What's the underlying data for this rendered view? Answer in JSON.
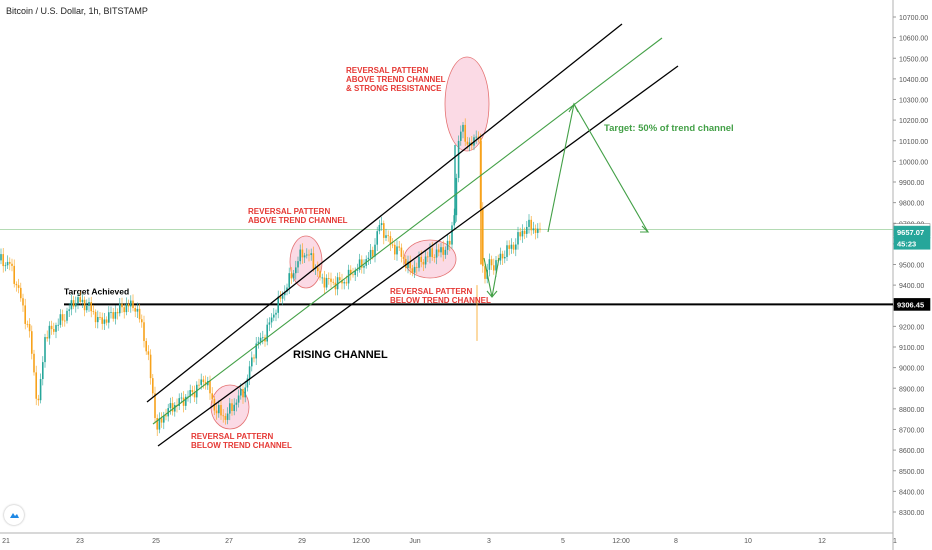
{
  "header": {
    "title": "Bitcoin / U.S. Dollar, 1h, BITSTAMP"
  },
  "chart_data": {
    "type": "candlestick",
    "title": "Bitcoin / U.S. Dollar, 1h, BITSTAMP",
    "ylim": [
      8250,
      10820
    ],
    "y_ticks": [
      10700,
      10600,
      10500,
      10400,
      10300,
      10200,
      10100,
      10000,
      9900,
      9800,
      9700,
      9600,
      9500,
      9400,
      9300,
      9200,
      9100,
      9000,
      8900,
      8800,
      8700,
      8600,
      8500,
      8400,
      8300
    ],
    "y_tick_labels": [
      "10700.00",
      "10600.00",
      "10500.00",
      "10400.00",
      "10300.00",
      "10200.00",
      "10100.00",
      "10000.00",
      "9900.00",
      "9800.00",
      "9700.00",
      "9600.00",
      "9500.00",
      "9400.00",
      "9300.00",
      "9200.00",
      "9100.00",
      "9000.00",
      "8900.00",
      "8800.00",
      "8700.00",
      "8600.00",
      "8500.00",
      "8400.00",
      "8300.00"
    ],
    "x_tick_labels": [
      "21",
      "23",
      "25",
      "27",
      "29",
      "12:00",
      "Jun",
      "3",
      "5",
      "12:00",
      "8",
      "10",
      "12",
      "1"
    ],
    "price_labels": [
      {
        "value": 9668.99,
        "label": "9668.99",
        "color": "#ffffff"
      },
      {
        "value": 9657.07,
        "label": "9657.07",
        "color": "#26a69a"
      },
      {
        "value": 9603,
        "label": "45:23",
        "color": "#26a69a"
      },
      {
        "value": 9306.45,
        "label": "9306.45",
        "color": "#000000"
      }
    ],
    "horizontal_lines": [
      {
        "value": 9306.45,
        "color": "#000000",
        "label": "Target Achieved"
      },
      {
        "value": 9668.99,
        "color": "#9ccf9c",
        "label": ""
      }
    ],
    "annotations": [
      {
        "lines": [
          "REVERSAL PATTERN",
          "ABOVE TREND CHANNEL",
          "& STRONG RESISTANCE"
        ],
        "color": "#e53935"
      },
      {
        "lines": [
          "REVERSAL PATTERN",
          "ABOVE TREND CHANNEL"
        ],
        "color": "#e53935"
      },
      {
        "lines": [
          "REVERSAL PATTERN",
          "BELOW TREND CHANNEL"
        ],
        "color": "#e53935"
      },
      {
        "lines": [
          "REVERSAL PATTERN",
          "BELOW TREND CHANNEL"
        ],
        "color": "#e53935"
      },
      {
        "lines": [
          "RISING CHANNEL"
        ],
        "color": "#000000"
      },
      {
        "lines": [
          "Target: 50% of trend channel"
        ],
        "color": "#43a047"
      }
    ],
    "colors": {
      "up": "#26a69a",
      "down": "#f7a21b",
      "channel": "#000000",
      "midline": "#43a047",
      "highlight": "#f8bbd0"
    }
  }
}
